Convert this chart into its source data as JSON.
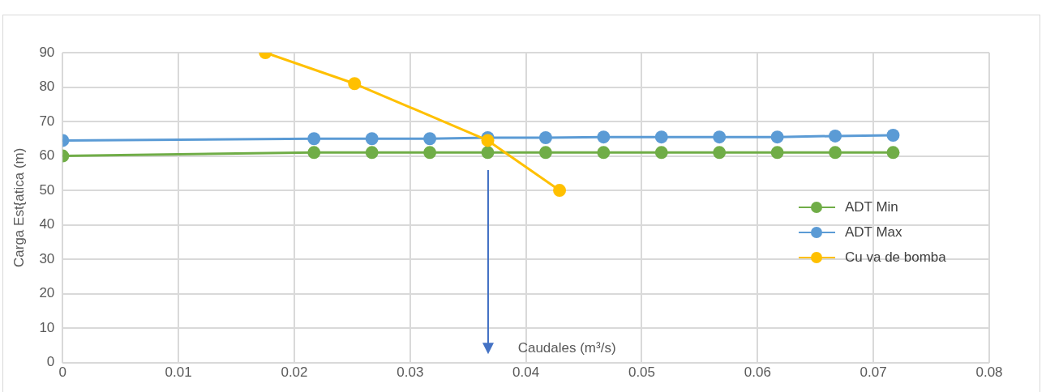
{
  "chart_data": {
    "type": "scatter",
    "xlabel": "Caudales (m³/s)",
    "ylabel": "Carga Est{atica (m)",
    "xlim": [
      0,
      0.08
    ],
    "xticks": [
      0,
      0.01,
      0.02,
      0.03,
      0.04,
      0.05,
      0.06,
      0.07,
      0.08
    ],
    "ylim": [
      0,
      90
    ],
    "yticks": [
      0,
      10,
      20,
      30,
      40,
      50,
      60,
      70,
      80,
      90
    ],
    "grid": true,
    "legend": "right",
    "marker": "circle",
    "line_style": "solid",
    "ref_lines": [
      {
        "axis": "x",
        "value": 0.0367,
        "color": "#4472c4"
      }
    ],
    "series": [
      {
        "name": "ADT Min",
        "type": "line",
        "color": "#70ad47",
        "x": [
          0,
          0.0217,
          0.0267,
          0.0317,
          0.0367,
          0.0417,
          0.0467,
          0.0517,
          0.0567,
          0.0617,
          0.0667,
          0.0717
        ],
        "values": [
          60,
          61,
          61,
          61,
          61,
          61,
          61,
          61,
          61,
          61,
          61,
          61
        ]
      },
      {
        "name": "ADT Max",
        "type": "line",
        "color": "#5b9bd5",
        "x": [
          0,
          0.0217,
          0.0267,
          0.0317,
          0.0367,
          0.0417,
          0.0467,
          0.0517,
          0.0567,
          0.0617,
          0.0667,
          0.0717
        ],
        "values": [
          64.5,
          65,
          65,
          65,
          65.3,
          65.3,
          65.5,
          65.5,
          65.5,
          65.5,
          65.8,
          66
        ]
      },
      {
        "name": "Cu va de bomba",
        "type": "line",
        "color": "#ffc000",
        "x": [
          0.0175,
          0.0252,
          0.0367,
          0.0429
        ],
        "values": [
          90,
          81,
          64.5,
          50
        ]
      }
    ]
  }
}
